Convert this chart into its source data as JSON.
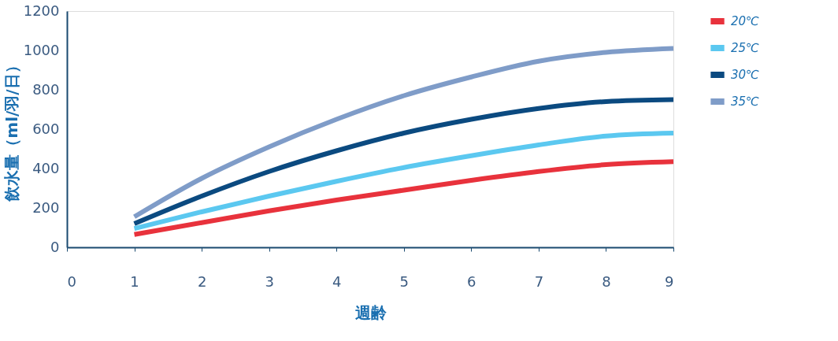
{
  "chart_data": {
    "type": "line",
    "xlabel": "週齢",
    "ylabel": "飲水量（ml/羽/日）",
    "x": [
      1,
      2,
      3,
      4,
      5,
      6,
      7,
      8,
      9
    ],
    "series": [
      {
        "name": "20℃",
        "color": "#e8323c",
        "values": [
          65,
          125,
          185,
          240,
          290,
          340,
          385,
          420,
          435
        ]
      },
      {
        "name": "25℃",
        "color": "#5bc8f0",
        "values": [
          95,
          180,
          260,
          335,
          405,
          465,
          520,
          565,
          580
        ]
      },
      {
        "name": "30℃",
        "color": "#0b4a80",
        "values": [
          120,
          260,
          385,
          490,
          580,
          650,
          705,
          740,
          750
        ]
      },
      {
        "name": "35℃",
        "color": "#7f9cc8",
        "values": [
          155,
          350,
          510,
          650,
          770,
          865,
          945,
          990,
          1010
        ]
      }
    ],
    "xlim": [
      0,
      9
    ],
    "xticks": [
      0,
      1,
      2,
      3,
      4,
      5,
      6,
      7,
      8,
      9
    ],
    "ylim": [
      0,
      1200
    ],
    "yticks": [
      0,
      200,
      400,
      600,
      800,
      1000,
      1200
    ],
    "grid": false,
    "legend": "right",
    "marker": "none",
    "line_style": "solid"
  }
}
